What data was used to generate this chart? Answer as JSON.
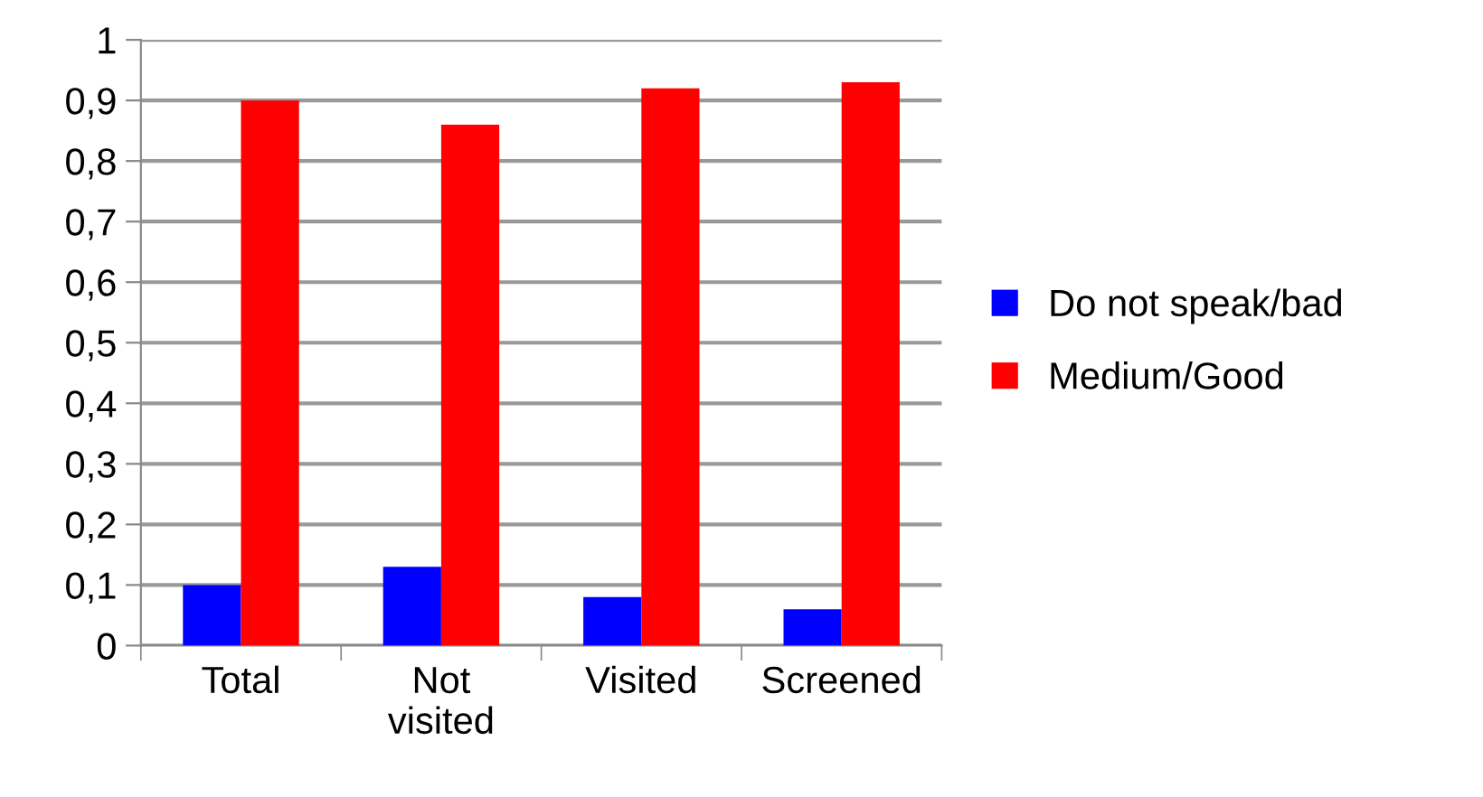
{
  "chart_data": {
    "type": "bar",
    "categories": [
      "Total",
      "Not\nvisited",
      "Visited",
      "Screened"
    ],
    "series": [
      {
        "name": "Do not speak/bad",
        "color": "#0000ff",
        "values": [
          0.1,
          0.13,
          0.08,
          0.06
        ]
      },
      {
        "name": "Medium/Good",
        "color": "#ff0000",
        "values": [
          0.9,
          0.86,
          0.92,
          0.93
        ]
      }
    ],
    "ylim": [
      0,
      1
    ],
    "yticks": [
      0,
      {
        "value": 0.1,
        "label": "0,1"
      },
      {
        "value": 0.2,
        "label": "0,2"
      },
      {
        "value": 0.3,
        "label": "0,3"
      },
      {
        "value": 0.4,
        "label": "0,4"
      },
      {
        "value": 0.5,
        "label": "0,5"
      },
      {
        "value": 0.6,
        "label": "0,6"
      },
      {
        "value": 0.7,
        "label": "0,7"
      },
      {
        "value": 0.8,
        "label": "0,8"
      },
      {
        "value": 0.9,
        "label": "0,9"
      },
      1
    ],
    "grid": "y",
    "legend": "right"
  }
}
